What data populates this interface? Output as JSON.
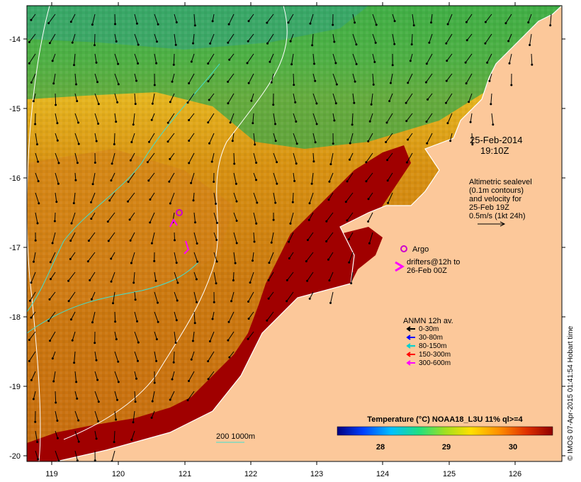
{
  "map": {
    "date": "25-Feb-2014",
    "time": "19:10Z",
    "altimetry_lines": [
      "Altimetric sealevel",
      "(0.1m contours)",
      "and velocity for",
      "25-Feb 19Z",
      "0.5m/s (1kt 24h)"
    ],
    "argo_label": "Argo",
    "drifters_lines": [
      "drifters@12h to",
      "26-Feb 00Z"
    ],
    "anmn_title": "ANMN 12h av.",
    "anmn_legend": [
      {
        "label": "0-30m",
        "color": "#000000"
      },
      {
        "label": "30-80m",
        "color": "#0000ff"
      },
      {
        "label": "80-150m",
        "color": "#00d0d0"
      },
      {
        "label": "150-300m",
        "color": "#ff0000"
      },
      {
        "label": "300-600m",
        "color": "#ff00ff"
      }
    ],
    "contour_label": "200  1000m",
    "colorbar_title": "Temperature (°C) NOAA18_L3U 11% ql>=4",
    "colorbar_ticks": [
      "28",
      "29",
      "30"
    ],
    "credit": "© IMOS 07-Apr-2015 01:41:54 Hobart time",
    "x_ticks": [
      "119",
      "120",
      "121",
      "122",
      "123",
      "124",
      "125",
      "126"
    ],
    "y_ticks": [
      "-14",
      "-15",
      "-16",
      "-17",
      "-18",
      "-19",
      "-20"
    ],
    "colors": {
      "land": "#fcc89a",
      "warm_shelf": "#a00000",
      "ocean_warm": "#d88a10",
      "ocean_mid": "#e8b020",
      "ocean_cool": "#70c040",
      "ocean_cold": "#30a060",
      "argo": "#cc00cc",
      "drifter": "#ff00ff"
    }
  }
}
